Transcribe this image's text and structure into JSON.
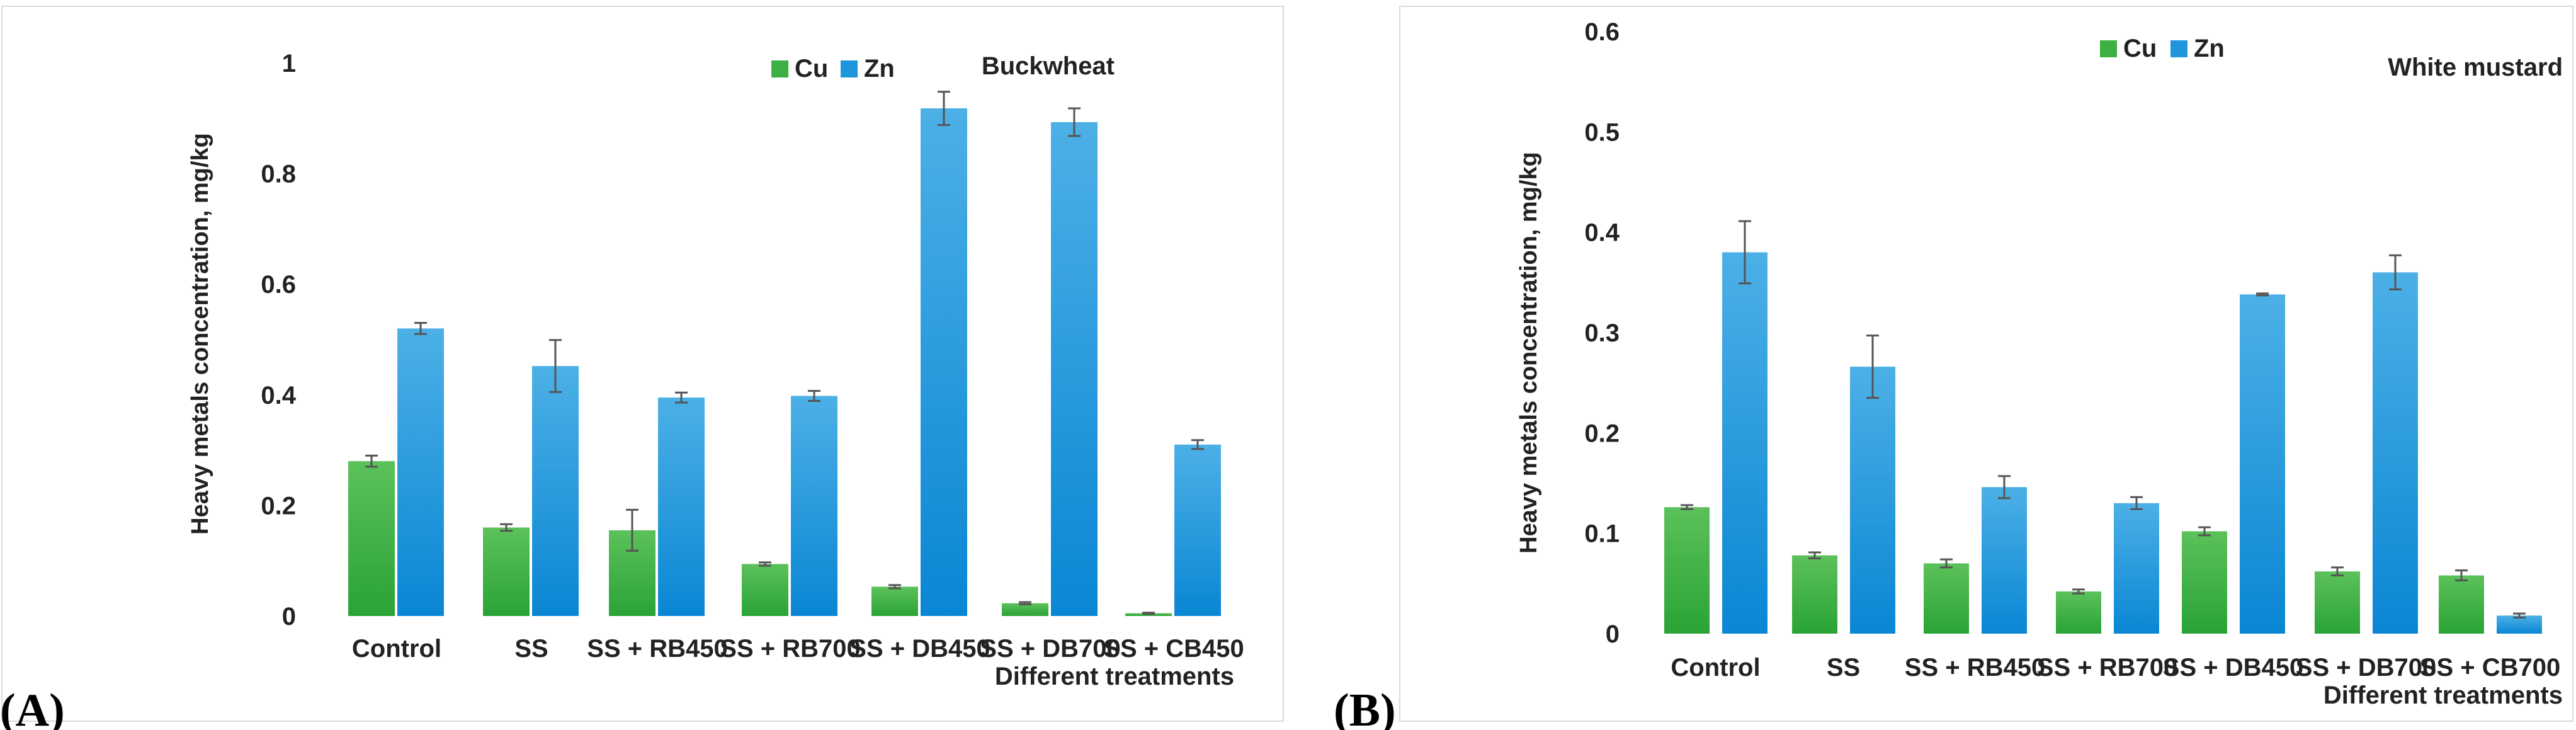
{
  "chart_data": [
    {
      "type": "bar",
      "panel_label": "(A)",
      "crop": "Buckwheat",
      "ylabel": "Heavy metals concentration, mg/kg",
      "xlabel": "Different treatments",
      "ylim": [
        0,
        1
      ],
      "yticks": [
        "0",
        "0.2",
        "0.4",
        "0.6",
        "0.8",
        "1"
      ],
      "categories": [
        "Control",
        "SS",
        "SS + RB450",
        "SS + RB700",
        "SS + DB450",
        "SS + DB700",
        "SS + CB450"
      ],
      "series": [
        {
          "name": "Cu",
          "color": "#3cb043",
          "values": [
            0.28,
            0.16,
            0.155,
            0.094,
            0.053,
            0.023,
            0.005
          ],
          "errors": [
            0.01,
            0.006,
            0.037,
            0.003,
            0.003,
            0.002,
            0.001
          ]
        },
        {
          "name": "Zn",
          "color": "#1e96dc",
          "values": [
            0.52,
            0.452,
            0.395,
            0.398,
            0.918,
            0.893,
            0.31
          ],
          "errors": [
            0.01,
            0.047,
            0.009,
            0.009,
            0.03,
            0.025,
            0.008
          ]
        }
      ],
      "legend": [
        "Cu",
        "Zn"
      ]
    },
    {
      "type": "bar",
      "panel_label": "(B)",
      "crop": "White mustard",
      "ylabel": "Heavy metals concentration, mg/kg",
      "xlabel": "Different treatments",
      "ylim": [
        0,
        0.6
      ],
      "yticks": [
        "0",
        "0.1",
        "0.2",
        "0.3",
        "0.4",
        "0.5",
        "0.6"
      ],
      "categories": [
        "Control",
        "SS",
        "SS + RB450",
        "SS + RB700",
        "SS + DB450",
        "SS + DB700",
        "SS + CB700"
      ],
      "series": [
        {
          "name": "Cu",
          "color": "#3cb043",
          "values": [
            0.126,
            0.078,
            0.07,
            0.042,
            0.102,
            0.062,
            0.058
          ],
          "errors": [
            0.002,
            0.003,
            0.004,
            0.002,
            0.004,
            0.004,
            0.005
          ]
        },
        {
          "name": "Zn",
          "color": "#1e96dc",
          "values": [
            0.38,
            0.266,
            0.146,
            0.13,
            0.338,
            0.36,
            0.018
          ],
          "errors": [
            0.031,
            0.031,
            0.011,
            0.006,
            0.001,
            0.017,
            0.002
          ]
        }
      ],
      "legend": [
        "Cu",
        "Zn"
      ]
    }
  ]
}
